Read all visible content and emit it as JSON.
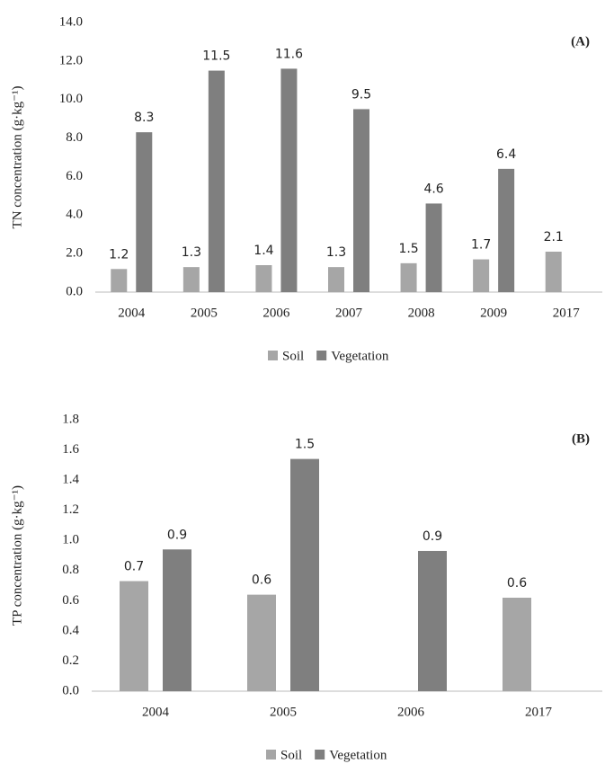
{
  "chart_data": [
    {
      "type": "bar",
      "annotation": "(A)",
      "y_label": "TN concentration (g·kg⁻¹)",
      "categories": [
        "2004",
        "2005",
        "2006",
        "2007",
        "2008",
        "2009",
        "2017"
      ],
      "series": [
        {
          "name": "Soil",
          "color": "#a6a6a6",
          "values": [
            1.2,
            1.3,
            1.4,
            1.3,
            1.5,
            1.7,
            2.1
          ]
        },
        {
          "name": "Vegetation",
          "color": "#7f7f7f",
          "values": [
            8.3,
            11.5,
            11.6,
            9.5,
            4.6,
            6.4,
            null
          ]
        }
      ],
      "ylim": [
        0,
        14
      ],
      "yticks": [
        {
          "value": 0,
          "label": "0.0"
        },
        {
          "value": 2,
          "label": "2.0"
        },
        {
          "value": 4,
          "label": "4.0"
        },
        {
          "value": 6,
          "label": "6.0"
        },
        {
          "value": 8,
          "label": "8.0"
        },
        {
          "value": 10,
          "label": "10.0"
        },
        {
          "value": 12,
          "label": "12.0"
        },
        {
          "value": 14,
          "label": "14.0"
        }
      ],
      "grid": false,
      "legend": "bottom"
    },
    {
      "type": "bar",
      "annotation": "(B)",
      "y_label": "TP concentration (g·kg⁻¹)",
      "categories": [
        "2004",
        "2005",
        "2006",
        "2017"
      ],
      "series": [
        {
          "name": "Soil",
          "color": "#a6a6a6",
          "values": [
            0.73,
            0.64,
            null,
            0.62
          ],
          "value_labels": [
            "0.7",
            "0.6",
            null,
            "0.6"
          ]
        },
        {
          "name": "Vegetation",
          "color": "#7f7f7f",
          "values": [
            0.94,
            1.54,
            0.93,
            null
          ],
          "value_labels": [
            "0.9",
            "1.5",
            "0.9",
            null
          ]
        }
      ],
      "ylim": [
        0,
        1.8
      ],
      "yticks": [
        {
          "value": 0,
          "label": "0.0"
        },
        {
          "value": 0.2,
          "label": "0.2"
        },
        {
          "value": 0.4,
          "label": "0.4"
        },
        {
          "value": 0.6,
          "label": "0.6"
        },
        {
          "value": 0.8,
          "label": "0.8"
        },
        {
          "value": 1.0,
          "label": "1.0"
        },
        {
          "value": 1.2,
          "label": "1.2"
        },
        {
          "value": 1.4,
          "label": "1.4"
        },
        {
          "value": 1.6,
          "label": "1.6"
        },
        {
          "value": 1.8,
          "label": "1.8"
        }
      ],
      "grid": false,
      "legend": "bottom"
    }
  ]
}
